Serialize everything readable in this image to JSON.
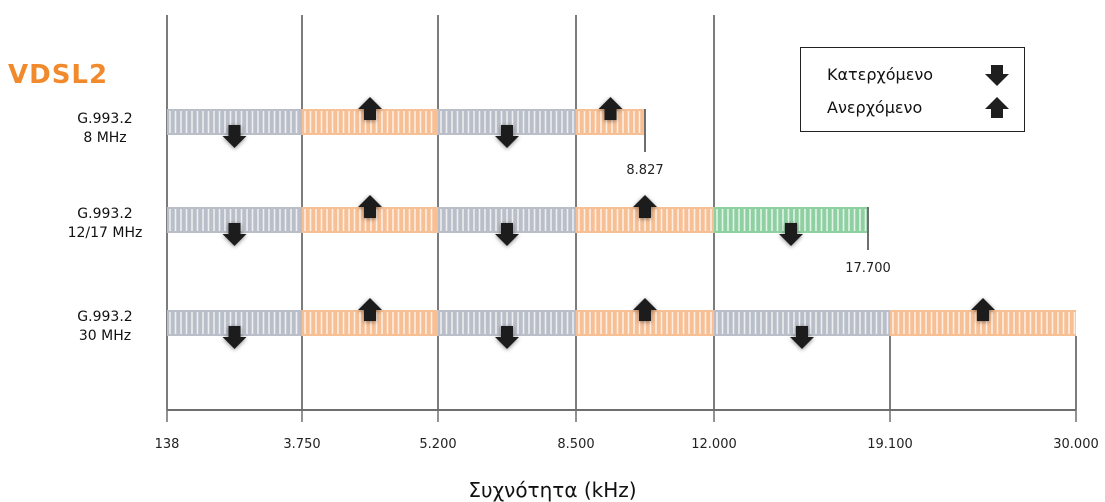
{
  "title": "VDSL2",
  "legend": {
    "downstream_label": "Κατερχόμενο",
    "upstream_label": "Ανερχόμενο",
    "downstream_icon": "arrow-down-icon",
    "upstream_icon": "arrow-up-icon"
  },
  "x_axis": {
    "label": "Συχνότητα (kHz)",
    "ticks": [
      "138",
      "3.750",
      "5.200",
      "8.500",
      "12.000",
      "19.100",
      "30.000"
    ]
  },
  "colors": {
    "downstream": "#b9bec8",
    "upstream": "#f7bf94",
    "downstream_alt": "#8fd0a3",
    "title": "#f08a2c",
    "arrow": "#1f1f1f"
  },
  "profiles": [
    {
      "line1": "G.993.2",
      "line2": "8 MHz",
      "end_label": "8.827",
      "bands": [
        {
          "type": "downstream",
          "from": "138",
          "to": "3.750"
        },
        {
          "type": "upstream",
          "from": "3.750",
          "to": "5.200"
        },
        {
          "type": "downstream",
          "from": "5.200",
          "to": "8.500"
        },
        {
          "type": "upstream",
          "from": "8.500",
          "to": "8.827"
        }
      ]
    },
    {
      "line1": "G.993.2",
      "line2": "12/17 MHz",
      "end_label": "17.700",
      "bands": [
        {
          "type": "downstream",
          "from": "138",
          "to": "3.750"
        },
        {
          "type": "upstream",
          "from": "3.750",
          "to": "5.200"
        },
        {
          "type": "downstream",
          "from": "5.200",
          "to": "8.500"
        },
        {
          "type": "upstream",
          "from": "8.500",
          "to": "12.000"
        },
        {
          "type": "downstream_alt",
          "from": "12.000",
          "to": "17.700"
        }
      ]
    },
    {
      "line1": "G.993.2",
      "line2": "30 MHz",
      "end_label": "",
      "bands": [
        {
          "type": "downstream",
          "from": "138",
          "to": "3.750"
        },
        {
          "type": "upstream",
          "from": "3.750",
          "to": "5.200"
        },
        {
          "type": "downstream",
          "from": "5.200",
          "to": "8.500"
        },
        {
          "type": "upstream",
          "from": "8.500",
          "to": "12.000"
        },
        {
          "type": "downstream",
          "from": "12.000",
          "to": "19.100"
        },
        {
          "type": "upstream",
          "from": "19.100",
          "to": "30.000"
        }
      ]
    }
  ]
}
